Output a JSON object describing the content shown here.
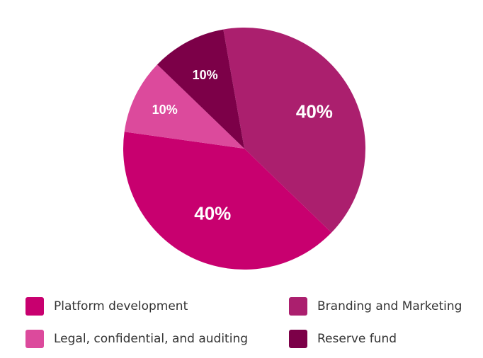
{
  "chart_data": {
    "type": "pie",
    "title": "",
    "categories": [
      "Branding and Marketing",
      "Platform development",
      "Legal, confidential, and auditing",
      "Reserve fund"
    ],
    "values": [
      40,
      40,
      10,
      10
    ],
    "labels": [
      "40%",
      "40%",
      "10%",
      "10%"
    ],
    "colors": [
      "#ab1f6e",
      "#c8006f",
      "#dc4a9c",
      "#7c0048"
    ],
    "start_angle_deg": -10,
    "direction": "clockwise",
    "legend_position": "bottom"
  },
  "legend": {
    "items": [
      {
        "label": "Platform development",
        "color": "#c8006f"
      },
      {
        "label": "Branding and Marketing",
        "color": "#ab1f6e"
      },
      {
        "label": "Legal, confidential, and auditing",
        "color": "#dc4a9c"
      },
      {
        "label": "Reserve fund",
        "color": "#7c0048"
      }
    ]
  }
}
